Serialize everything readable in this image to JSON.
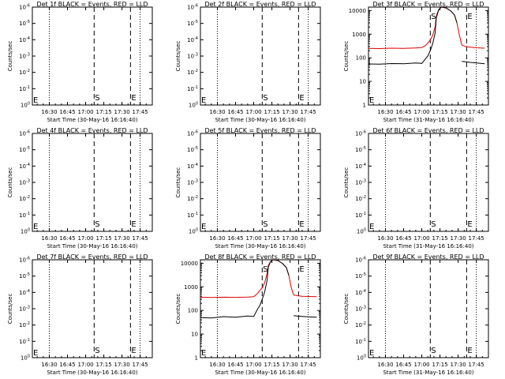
{
  "colors": {
    "events": "#000000",
    "lld": "#dd0000",
    "background": "#ffffff"
  },
  "chart_data": [
    {
      "type": "line",
      "title": "Det 1f BLACK = Events, RED = LLD",
      "xlabel": "Start Time (30-May-16 16:16:40)",
      "ylabel": "Counts/sec",
      "scale": "log",
      "ytick_labels": [
        "10^0",
        "10^-1",
        "10^-2",
        "10^-3",
        "10^-4",
        "10^-5",
        "10^-6"
      ],
      "xtick_labels": [
        "16:30",
        "16:45",
        "17:00",
        "17:15",
        "17:30",
        "17:45"
      ],
      "markers": [
        "E",
        "S",
        "E"
      ],
      "series": []
    },
    {
      "type": "line",
      "title": "Det 2f BLACK = Events, RED = LLD",
      "xlabel": "Start Time (30-May-16 16:16:40)",
      "ylabel": "Counts/sec",
      "scale": "log",
      "ytick_labels": [
        "10^0",
        "10^-1",
        "10^-2",
        "10^-3",
        "10^-4",
        "10^-5",
        "10^-6"
      ],
      "xtick_labels": [
        "16:30",
        "16:45",
        "17:00",
        "17:15",
        "17:30",
        "17:45"
      ],
      "markers": [
        "E",
        "S",
        "E"
      ],
      "series": []
    },
    {
      "type": "line",
      "title": "Det 3f BLACK = Events, RED = LLD",
      "xlabel": "Start Time (31-May-16 16:16:40)",
      "ylabel": "Counts/sec",
      "scale": "log",
      "ytick_labels": [
        "1",
        "10",
        "100",
        "1000",
        "10000"
      ],
      "xtick_labels": [
        "16:30",
        "16:45",
        "17:00",
        "17:15",
        "17:30",
        "17:45"
      ],
      "markers": [
        "E",
        "S",
        "E"
      ],
      "series": [
        {
          "name": "LLD",
          "color": "red",
          "x": [
            "16:16",
            "16:25",
            "16:35",
            "16:45",
            "16:55",
            "17:00",
            "17:03",
            "17:05",
            "17:07",
            "17:09",
            "17:11",
            "17:12",
            "17:14",
            "17:16",
            "17:20",
            "17:24",
            "17:27",
            "17:29",
            "17:31",
            "17:33",
            "17:36",
            "17:40",
            "17:45",
            "17:52"
          ],
          "y": [
            250,
            245,
            255,
            250,
            262,
            270,
            330,
            420,
            560,
            900,
            2000,
            6000,
            11000,
            14000,
            13000,
            9500,
            6500,
            3000,
            900,
            350,
            300,
            280,
            265,
            255
          ]
        },
        {
          "name": "Events",
          "color": "black",
          "x": [
            "16:16",
            "16:25",
            "16:35",
            "16:45",
            "16:55",
            "17:00",
            "17:03",
            "17:05",
            "17:07",
            "17:09",
            "17:11",
            "17:12",
            "17:14",
            "17:16",
            "17:20",
            "17:24",
            "17:27",
            "17:29",
            "17:31",
            "17:33",
            "17:36",
            "17:40",
            "17:45",
            "17:52"
          ],
          "y": [
            55,
            54,
            57,
            56,
            60,
            58,
            90,
            120,
            200,
            400,
            1100,
            5000,
            11000,
            14000,
            13000,
            9500,
            6500,
            3000,
            null,
            70,
            68,
            64,
            60,
            56
          ]
        }
      ]
    },
    {
      "type": "line",
      "title": "Det 4f BLACK = Events, RED = LLD",
      "xlabel": "Start Time (30-May-16 16:16:40)",
      "ylabel": "Counts/sec",
      "scale": "log",
      "ytick_labels": [
        "10^0",
        "10^-1",
        "10^-2",
        "10^-3",
        "10^-4",
        "10^-5",
        "10^-6"
      ],
      "xtick_labels": [
        "16:30",
        "16:45",
        "17:00",
        "17:15",
        "17:30",
        "17:45"
      ],
      "markers": [
        "E",
        "S",
        "E"
      ],
      "series": []
    },
    {
      "type": "line",
      "title": "Det 5f BLACK = Events, RED = LLD",
      "xlabel": "Start Time (30-May-16 16:16:40)",
      "ylabel": "Counts/sec",
      "scale": "log",
      "ytick_labels": [
        "10^0",
        "10^-1",
        "10^-2",
        "10^-3",
        "10^-4",
        "10^-5",
        "10^-6"
      ],
      "xtick_labels": [
        "16:30",
        "16:45",
        "17:00",
        "17:15",
        "17:30",
        "17:45"
      ],
      "markers": [
        "E",
        "S",
        "E"
      ],
      "series": []
    },
    {
      "type": "line",
      "title": "Det 6f BLACK = Events, RED = LLD",
      "xlabel": "Start Time (31-May-16 16:16:40)",
      "ylabel": "Counts/sec",
      "scale": "log",
      "ytick_labels": [
        "10^0",
        "10^-1",
        "10^-2",
        "10^-3",
        "10^-4",
        "10^-5",
        "10^-6"
      ],
      "xtick_labels": [
        "16:30",
        "16:45",
        "17:00",
        "17:15",
        "17:30",
        "17:45"
      ],
      "markers": [
        "E",
        "S",
        "E"
      ],
      "series": []
    },
    {
      "type": "line",
      "title": "Det 7f BLACK = Events, RED = LLD",
      "xlabel": "Start Time (30-May-16 16:16:40)",
      "ylabel": "Counts/sec",
      "scale": "log",
      "ytick_labels": [
        "10^0",
        "10^-1",
        "10^-2",
        "10^-3",
        "10^-4",
        "10^-5",
        "10^-6"
      ],
      "xtick_labels": [
        "16:30",
        "16:45",
        "17:00",
        "17:15",
        "17:30",
        "17:45"
      ],
      "markers": [
        "E",
        "S",
        "E"
      ],
      "series": []
    },
    {
      "type": "line",
      "title": "Det 8f BLACK = Events, RED = LLD",
      "xlabel": "Start Time (30-May-16 16:16:40)",
      "ylabel": "Counts/sec",
      "scale": "log",
      "ytick_labels": [
        "1",
        "10",
        "100",
        "1000",
        "10000"
      ],
      "xtick_labels": [
        "16:30",
        "16:45",
        "17:00",
        "17:15",
        "17:30",
        "17:45"
      ],
      "markers": [
        "E",
        "S",
        "E"
      ],
      "series": [
        {
          "name": "LLD",
          "color": "red",
          "x": [
            "16:16",
            "16:25",
            "16:35",
            "16:45",
            "16:55",
            "17:00",
            "17:03",
            "17:05",
            "17:07",
            "17:09",
            "17:11",
            "17:12",
            "17:14",
            "17:16",
            "17:20",
            "17:24",
            "17:27",
            "17:29",
            "17:31",
            "17:33",
            "17:36",
            "17:40",
            "17:45",
            "17:52"
          ],
          "y": [
            360,
            355,
            365,
            358,
            370,
            380,
            520,
            700,
            900,
            1500,
            3500,
            8000,
            12000,
            14000,
            13000,
            9500,
            6500,
            3000,
            900,
            450,
            420,
            400,
            390,
            380
          ]
        },
        {
          "name": "Events",
          "color": "black",
          "x": [
            "16:16",
            "16:25",
            "16:35",
            "16:45",
            "16:55",
            "17:00",
            "17:03",
            "17:05",
            "17:07",
            "17:09",
            "17:11",
            "17:12",
            "17:14",
            "17:16",
            "17:20",
            "17:24",
            "17:27",
            "17:29",
            "17:31",
            "17:33",
            "17:36",
            "17:40",
            "17:45",
            "17:52"
          ],
          "y": [
            50,
            48,
            55,
            52,
            58,
            56,
            110,
            160,
            300,
            600,
            1800,
            7000,
            12000,
            14000,
            13000,
            9500,
            6500,
            3000,
            null,
            60,
            58,
            56,
            54,
            52
          ]
        }
      ]
    },
    {
      "type": "line",
      "title": "Det 9f BLACK = Events, RED = LLD",
      "xlabel": "Start Time (31-May-16 16:16:40)",
      "ylabel": "Counts/sec",
      "scale": "log",
      "ytick_labels": [
        "10^0",
        "10^-1",
        "10^-2",
        "10^-3",
        "10^-4",
        "10^-5",
        "10^-6"
      ],
      "xtick_labels": [
        "16:30",
        "16:45",
        "17:00",
        "17:15",
        "17:30",
        "17:45"
      ],
      "markers": [
        "E",
        "S",
        "E"
      ],
      "series": []
    }
  ]
}
